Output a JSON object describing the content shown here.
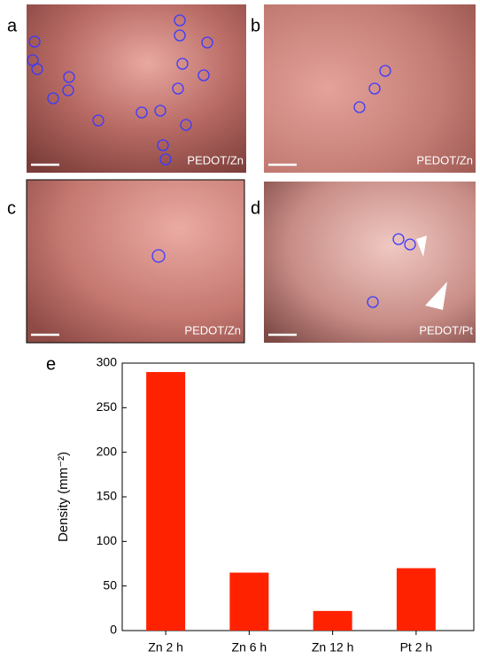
{
  "panels": [
    {
      "letter": "a",
      "label": "PEDOT/Zn"
    },
    {
      "letter": "b",
      "label": "PEDOT/Zn"
    },
    {
      "letter": "c",
      "label": "PEDOT/Zn"
    },
    {
      "letter": "d",
      "label": "PEDOT/Pt"
    }
  ],
  "chart_data": {
    "type": "bar",
    "panel_letter": "e",
    "y_label": "Density (mm⁻²)",
    "categories": [
      "Zn 2 h",
      "Zn 6 h",
      "Zn 12 h",
      "Pt 2 h"
    ],
    "values": [
      290,
      65,
      22,
      70
    ],
    "color": "#ff2200",
    "ylim": [
      0,
      300
    ],
    "yticks": [
      0,
      50,
      100,
      150,
      200,
      250,
      300
    ]
  }
}
